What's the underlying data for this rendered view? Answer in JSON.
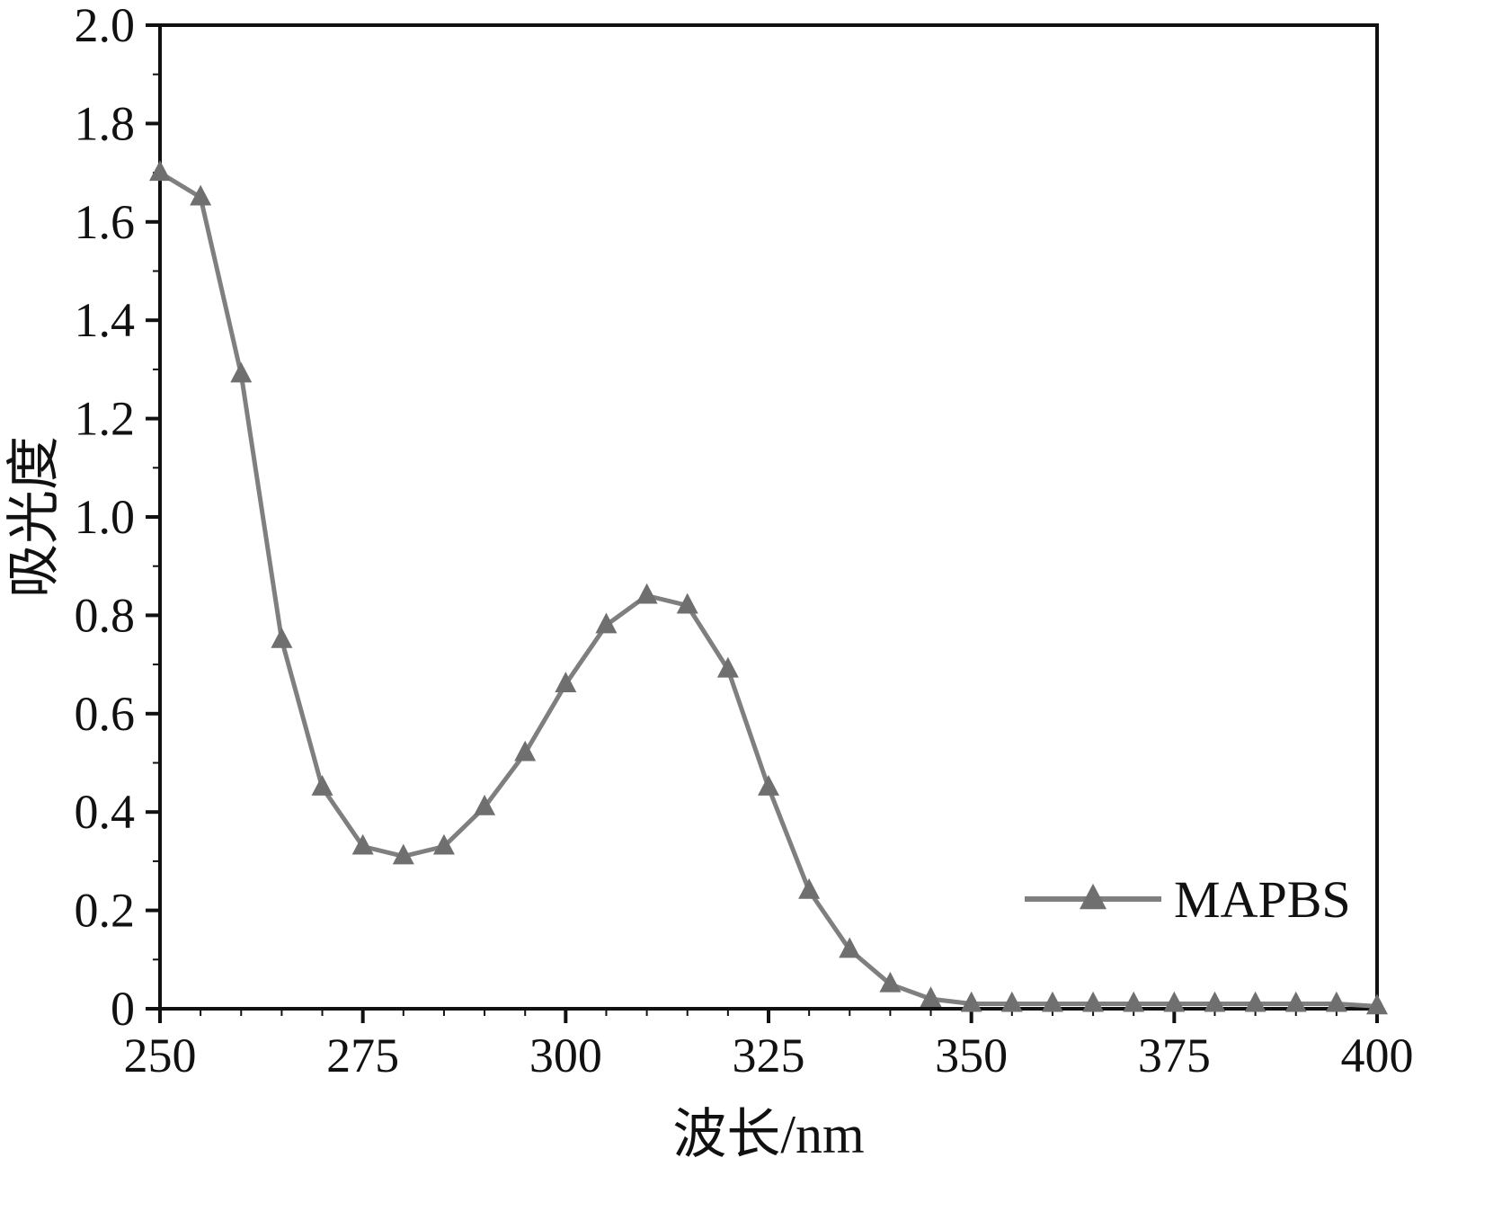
{
  "chart_data": {
    "type": "line",
    "title": "",
    "xlabel": "波长/nm",
    "ylabel": "吸光度",
    "xlim": [
      250,
      400
    ],
    "ylim": [
      0,
      2.0
    ],
    "xticks": [
      250,
      275,
      300,
      325,
      350,
      375,
      400
    ],
    "xtick_labels": [
      "250",
      "275",
      "300",
      "325",
      "350",
      "375",
      "400"
    ],
    "yticks": [
      0,
      0.2,
      0.4,
      0.6,
      0.8,
      1.0,
      1.2,
      1.4,
      1.6,
      1.8,
      2.0
    ],
    "ytick_labels": [
      "0",
      "0.2",
      "0.4",
      "0.6",
      "0.8",
      "1.0",
      "1.2",
      "1.4",
      "1.6",
      "1.8",
      "2.0"
    ],
    "x_minor_step": 5,
    "y_minor_step": 0.1,
    "grid": false,
    "legend_position": "lower right inside",
    "series": [
      {
        "name": "MAPBS",
        "marker": "triangle-up",
        "line_color": "#7f7f7f",
        "marker_color": "#6f6f6f",
        "x": [
          250,
          255,
          260,
          265,
          270,
          275,
          280,
          285,
          290,
          295,
          300,
          305,
          310,
          315,
          320,
          325,
          330,
          335,
          340,
          345,
          350,
          355,
          360,
          365,
          370,
          375,
          380,
          385,
          390,
          395,
          400
        ],
        "values": [
          1.7,
          1.65,
          1.29,
          0.75,
          0.45,
          0.33,
          0.31,
          0.33,
          0.41,
          0.52,
          0.66,
          0.78,
          0.84,
          0.82,
          0.69,
          0.45,
          0.24,
          0.12,
          0.05,
          0.02,
          0.01,
          0.01,
          0.01,
          0.01,
          0.01,
          0.01,
          0.01,
          0.01,
          0.01,
          0.01,
          0.005
        ]
      }
    ],
    "legend": {
      "label": "MAPBS"
    }
  }
}
